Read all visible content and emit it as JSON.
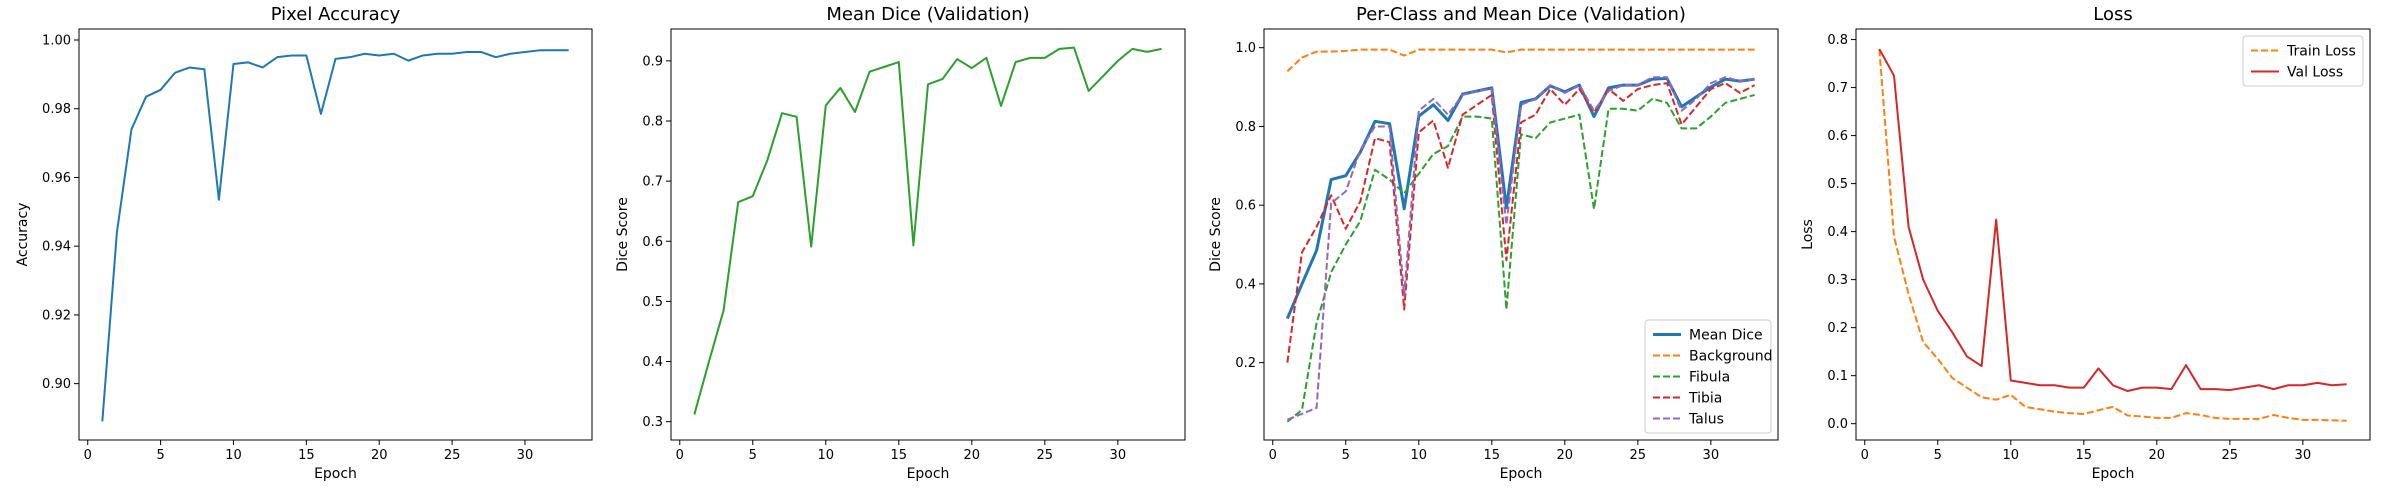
{
  "chart_data": [
    {
      "type": "line",
      "title": "Pixel Accuracy",
      "xlabel": "Epoch",
      "ylabel": "Accuracy",
      "xlim": [
        -0.6,
        34.6
      ],
      "ylim": [
        0.8836,
        1.0032
      ],
      "xticks": [
        0,
        5,
        10,
        15,
        20,
        25,
        30
      ],
      "yticks": [
        0.9,
        0.92,
        0.94,
        0.96,
        0.98,
        1.0
      ],
      "ytick_labels": [
        "0.90",
        "0.92",
        "0.94",
        "0.96",
        "0.98",
        "1.00"
      ],
      "grid": false,
      "legend": null,
      "x": [
        1,
        2,
        3,
        4,
        5,
        6,
        7,
        8,
        9,
        10,
        11,
        12,
        13,
        14,
        15,
        16,
        17,
        18,
        19,
        20,
        21,
        22,
        23,
        24,
        25,
        26,
        27,
        28,
        29,
        30,
        31,
        32,
        33
      ],
      "series": [
        {
          "name": "",
          "color": "#1f77b4",
          "dash": "solid",
          "width": 2,
          "values": [
            0.889,
            0.944,
            0.974,
            0.9835,
            0.9855,
            0.9905,
            0.992,
            0.9915,
            0.9535,
            0.993,
            0.9935,
            0.992,
            0.995,
            0.9955,
            0.9955,
            0.9785,
            0.9945,
            0.995,
            0.996,
            0.9955,
            0.996,
            0.994,
            0.9955,
            0.996,
            0.996,
            0.9965,
            0.9965,
            0.995,
            0.996,
            0.9965,
            0.997,
            0.997,
            0.997
          ]
        }
      ]
    },
    {
      "type": "line",
      "title": "Mean Dice (Validation)",
      "xlabel": "Epoch",
      "ylabel": "Dice Score",
      "xlim": [
        -0.6,
        34.6
      ],
      "ylim": [
        0.2695,
        0.953
      ],
      "xticks": [
        0,
        5,
        10,
        15,
        20,
        25,
        30
      ],
      "yticks": [
        0.3,
        0.4,
        0.5,
        0.6,
        0.7,
        0.8,
        0.9
      ],
      "ytick_labels": [
        "0.3",
        "0.4",
        "0.5",
        "0.6",
        "0.7",
        "0.8",
        "0.9"
      ],
      "grid": false,
      "legend": null,
      "x": [
        1,
        2,
        3,
        4,
        5,
        6,
        7,
        8,
        9,
        10,
        11,
        12,
        13,
        14,
        15,
        16,
        17,
        18,
        19,
        20,
        21,
        22,
        23,
        24,
        25,
        26,
        27,
        28,
        29,
        30,
        31,
        32,
        33
      ],
      "series": [
        {
          "name": "",
          "color": "#2ca02c",
          "dash": "solid",
          "width": 2,
          "values": [
            0.312,
            0.4,
            0.485,
            0.665,
            0.675,
            0.735,
            0.813,
            0.807,
            0.591,
            0.826,
            0.855,
            0.815,
            0.882,
            0.89,
            0.898,
            0.593,
            0.861,
            0.87,
            0.903,
            0.888,
            0.905,
            0.825,
            0.898,
            0.905,
            0.905,
            0.92,
            0.922,
            0.85,
            0.875,
            0.9,
            0.92,
            0.915,
            0.92
          ]
        }
      ]
    },
    {
      "type": "line",
      "title": "Per-Class and Mean Dice (Validation)",
      "xlabel": "Epoch",
      "ylabel": "Dice Score",
      "xlim": [
        -0.6,
        34.6
      ],
      "ylim": [
        0.0035,
        1.0475
      ],
      "xticks": [
        0,
        5,
        10,
        15,
        20,
        25,
        30
      ],
      "yticks": [
        0.2,
        0.4,
        0.6,
        0.8,
        1.0
      ],
      "ytick_labels": [
        "0.2",
        "0.4",
        "0.6",
        "0.8",
        "1.0"
      ],
      "grid": false,
      "legend": "lower right",
      "x": [
        1,
        2,
        3,
        4,
        5,
        6,
        7,
        8,
        9,
        10,
        11,
        12,
        13,
        14,
        15,
        16,
        17,
        18,
        19,
        20,
        21,
        22,
        23,
        24,
        25,
        26,
        27,
        28,
        29,
        30,
        31,
        32,
        33
      ],
      "series": [
        {
          "name": "Mean Dice",
          "color": "#1f77b4",
          "dash": "solid",
          "width": 3,
          "values": [
            0.312,
            0.4,
            0.485,
            0.665,
            0.675,
            0.735,
            0.813,
            0.807,
            0.591,
            0.826,
            0.855,
            0.815,
            0.882,
            0.89,
            0.898,
            0.593,
            0.861,
            0.87,
            0.903,
            0.888,
            0.905,
            0.825,
            0.898,
            0.905,
            0.905,
            0.92,
            0.922,
            0.85,
            0.875,
            0.9,
            0.92,
            0.915,
            0.92
          ]
        },
        {
          "name": "Background",
          "color": "#ff7f0e",
          "dash": "dashed",
          "width": 2,
          "values": [
            0.94,
            0.975,
            0.99,
            0.99,
            0.992,
            0.995,
            0.995,
            0.995,
            0.98,
            0.995,
            0.995,
            0.995,
            0.995,
            0.995,
            0.995,
            0.988,
            0.995,
            0.995,
            0.995,
            0.995,
            0.995,
            0.995,
            0.995,
            0.995,
            0.995,
            0.995,
            0.995,
            0.995,
            0.995,
            0.995,
            0.995,
            0.995,
            0.995
          ]
        },
        {
          "name": "Fibula",
          "color": "#2ca02c",
          "dash": "dashed",
          "width": 2,
          "values": [
            0.05,
            0.08,
            0.3,
            0.43,
            0.5,
            0.56,
            0.69,
            0.665,
            0.63,
            0.68,
            0.73,
            0.75,
            0.825,
            0.825,
            0.82,
            0.335,
            0.78,
            0.77,
            0.81,
            0.82,
            0.83,
            0.59,
            0.845,
            0.845,
            0.84,
            0.87,
            0.86,
            0.795,
            0.795,
            0.825,
            0.86,
            0.87,
            0.88
          ]
        },
        {
          "name": "Tibia",
          "color": "#d62728",
          "dash": "dashed",
          "width": 2,
          "values": [
            0.2,
            0.48,
            0.545,
            0.625,
            0.54,
            0.61,
            0.77,
            0.76,
            0.335,
            0.785,
            0.815,
            0.695,
            0.83,
            0.855,
            0.88,
            0.46,
            0.81,
            0.83,
            0.895,
            0.855,
            0.895,
            0.835,
            0.895,
            0.865,
            0.895,
            0.905,
            0.91,
            0.805,
            0.85,
            0.895,
            0.91,
            0.885,
            0.905
          ]
        },
        {
          "name": "Talus",
          "color": "#9467bd",
          "dash": "dashed",
          "width": 2,
          "values": [
            0.055,
            0.07,
            0.085,
            0.605,
            0.635,
            0.74,
            0.8,
            0.8,
            0.37,
            0.84,
            0.87,
            0.83,
            0.88,
            0.89,
            0.895,
            0.55,
            0.855,
            0.87,
            0.905,
            0.885,
            0.905,
            0.84,
            0.89,
            0.905,
            0.905,
            0.925,
            0.925,
            0.84,
            0.87,
            0.91,
            0.925,
            0.915,
            0.92
          ]
        }
      ]
    },
    {
      "type": "line",
      "title": "Loss",
      "xlabel": "Epoch",
      "ylabel": "Loss",
      "xlim": [
        -0.6,
        34.6
      ],
      "ylim": [
        -0.034,
        0.822
      ],
      "xticks": [
        0,
        5,
        10,
        15,
        20,
        25,
        30
      ],
      "yticks": [
        0.0,
        0.1,
        0.2,
        0.3,
        0.4,
        0.5,
        0.6,
        0.7,
        0.8
      ],
      "ytick_labels": [
        "0.0",
        "0.1",
        "0.2",
        "0.3",
        "0.4",
        "0.5",
        "0.6",
        "0.7",
        "0.8"
      ],
      "grid": false,
      "legend": "upper right",
      "x": [
        1,
        2,
        3,
        4,
        5,
        6,
        7,
        8,
        9,
        10,
        11,
        12,
        13,
        14,
        15,
        16,
        17,
        18,
        19,
        20,
        21,
        22,
        23,
        24,
        25,
        26,
        27,
        28,
        29,
        30,
        31,
        32,
        33
      ],
      "series": [
        {
          "name": "Train Loss",
          "color": "#ff7f0e",
          "dash": "dashed",
          "width": 2,
          "values": [
            0.78,
            0.39,
            0.27,
            0.17,
            0.135,
            0.095,
            0.075,
            0.055,
            0.05,
            0.06,
            0.035,
            0.03,
            0.025,
            0.022,
            0.02,
            0.028,
            0.035,
            0.017,
            0.015,
            0.012,
            0.012,
            0.022,
            0.018,
            0.012,
            0.01,
            0.01,
            0.01,
            0.018,
            0.012,
            0.008,
            0.008,
            0.007,
            0.006
          ]
        },
        {
          "name": "Val Loss",
          "color": "#d62728",
          "dash": "solid",
          "width": 2,
          "values": [
            0.78,
            0.725,
            0.41,
            0.3,
            0.235,
            0.19,
            0.14,
            0.12,
            0.425,
            0.09,
            0.085,
            0.08,
            0.08,
            0.075,
            0.075,
            0.115,
            0.08,
            0.068,
            0.075,
            0.075,
            0.072,
            0.122,
            0.072,
            0.072,
            0.07,
            0.075,
            0.08,
            0.072,
            0.08,
            0.08,
            0.085,
            0.08,
            0.082
          ]
        }
      ]
    }
  ]
}
